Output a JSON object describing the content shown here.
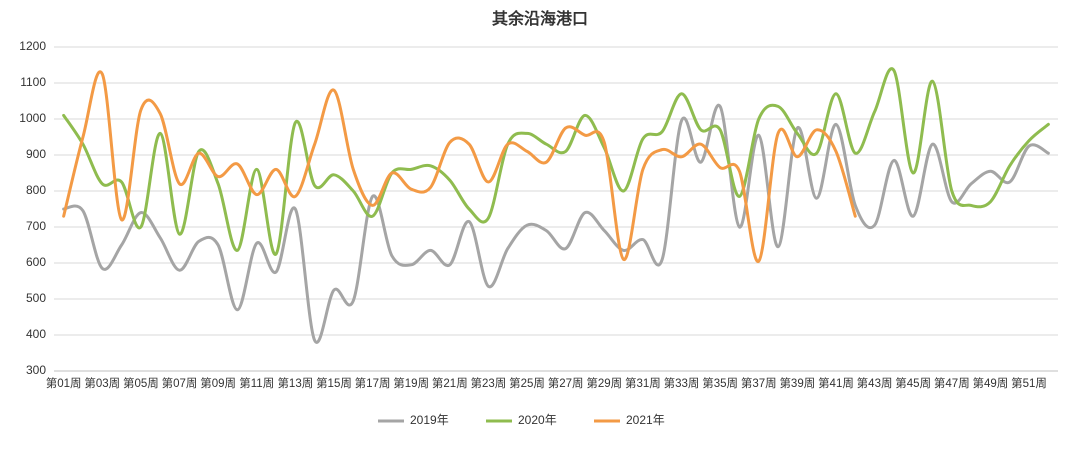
{
  "chart_data": {
    "type": "line",
    "title": "其余沿海港口",
    "categories": [
      "第01周",
      null,
      "第03周",
      null,
      "第05周",
      null,
      "第07周",
      null,
      "第09周",
      null,
      "第11周",
      null,
      "第13周",
      null,
      "第15周",
      null,
      "第17周",
      null,
      "第19周",
      null,
      "第21周",
      null,
      "第23周",
      null,
      "第25周",
      null,
      "第27周",
      null,
      "第29周",
      null,
      "第31周",
      null,
      "第33周",
      null,
      "第35周",
      null,
      "第37周",
      null,
      "第39周",
      null,
      "第41周",
      null,
      "第43周",
      null,
      "第45周",
      null,
      "第47周",
      null,
      "第49周",
      null,
      "第51周",
      null
    ],
    "series": [
      {
        "name": "2019年",
        "color": "#a5a5a5",
        "values": [
          750,
          745,
          585,
          650,
          740,
          670,
          580,
          660,
          650,
          470,
          655,
          575,
          750,
          385,
          525,
          495,
          785,
          620,
          595,
          635,
          595,
          715,
          535,
          640,
          705,
          690,
          640,
          740,
          690,
          635,
          665,
          610,
          995,
          880,
          1035,
          700,
          955,
          645,
          975,
          780,
          985,
          760,
          705,
          885,
          730,
          930,
          770,
          820,
          855,
          825,
          925,
          905
        ]
      },
      {
        "name": "2020年",
        "color": "#8fbc4f",
        "values": [
          1010,
          930,
          820,
          825,
          700,
          960,
          680,
          910,
          820,
          635,
          860,
          625,
          990,
          815,
          845,
          800,
          730,
          850,
          860,
          870,
          830,
          750,
          725,
          930,
          960,
          930,
          910,
          1010,
          920,
          800,
          945,
          965,
          1070,
          970,
          970,
          785,
          1000,
          1035,
          960,
          905,
          1070,
          905,
          1020,
          1135,
          850,
          1105,
          800,
          760,
          770,
          870,
          940,
          985
        ]
      },
      {
        "name": "2021年",
        "color": "#f39a45",
        "values": [
          730,
          950,
          1125,
          720,
          1025,
          1015,
          820,
          905,
          840,
          875,
          790,
          860,
          785,
          930,
          1080,
          860,
          760,
          850,
          805,
          810,
          935,
          930,
          825,
          930,
          910,
          880,
          975,
          955,
          935,
          610,
          860,
          915,
          895,
          930,
          865,
          855,
          605,
          960,
          895,
          970,
          910,
          730,
          null,
          null,
          null,
          null,
          null,
          null,
          null,
          null,
          null,
          null
        ]
      }
    ],
    "ylim": [
      300,
      1200
    ],
    "yticks": [
      300,
      400,
      500,
      600,
      700,
      800,
      900,
      1000,
      1100,
      1200
    ],
    "grid": true,
    "legend": "bottom"
  }
}
